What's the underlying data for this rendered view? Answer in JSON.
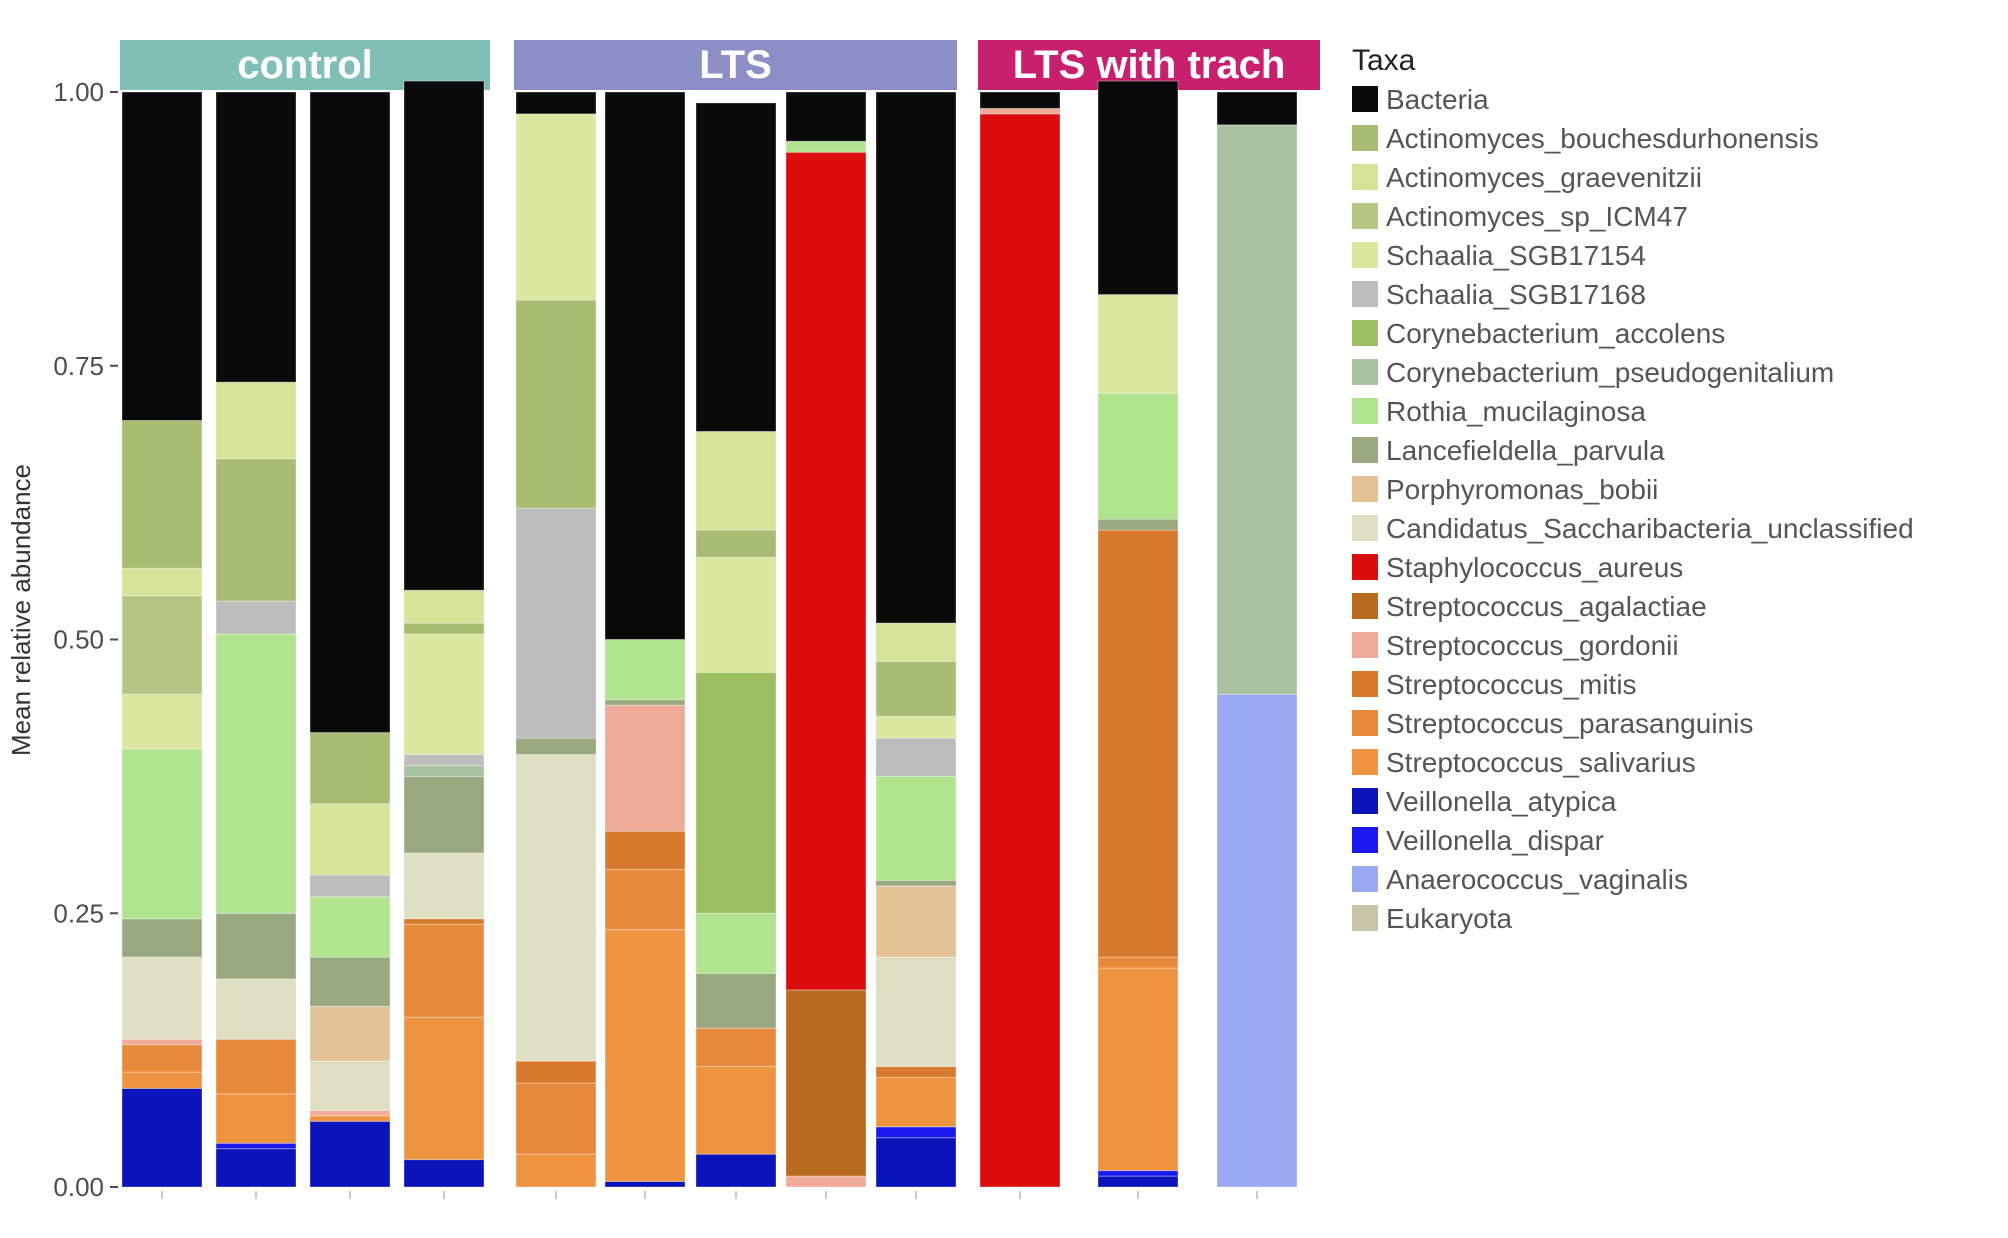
{
  "chart_data": {
    "type": "bar",
    "stacked": true,
    "ylabel": "Mean relative abundance",
    "xlabel": "",
    "ylim": [
      0,
      1
    ],
    "y_ticks": [
      "0.00",
      "0.25",
      "0.50",
      "0.75",
      "1.00"
    ],
    "legend": {
      "title": "Taxa",
      "position": "right"
    },
    "colors": {
      "Bacteria": "#0a0a0a",
      "Actinomyces_bouchesdurhonensis": "#a8bc74",
      "Actinomyces_graevenitzii": "#d6e49a",
      "Actinomyces_sp_ICM47": "#b5c684",
      "Schaalia_SGB17154": "#dbe69e",
      "Schaalia_SGB17168": "#bdbdbd",
      "Corynebacterium_accolens": "#9cbf62",
      "Corynebacterium_pseudogenitalium": "#a9c29f",
      "Rothia_mucilaginosa": "#b0e48e",
      "Lancefieldella_parvula": "#9aa880",
      "Porphyromonas_bobii": "#e3c396",
      "Candidatus_Saccharibacteria_unclassified": "#dfe0c3",
      "Staphylococcus_aureus": "#dc0d0d",
      "Streptococcus_agalactiae": "#b86a1e",
      "Streptococcus_gordonii": "#f0aa98",
      "Streptococcus_mitis": "#d87a2e",
      "Streptococcus_parasanguinis": "#e88a3c",
      "Streptococcus_salivarius": "#ee9440",
      "Veillonella_atypica": "#0a14b8",
      "Veillonella_dispar": "#1a1aee",
      "Anaerococcus_vaginalis": "#9aaaf2",
      "Eukaryota": "#c8c4a8"
    },
    "facets": [
      {
        "label": "control",
        "strip_color": "#7fbfb6",
        "bars": [
          {
            "segments": [
              [
                "Veillonella_atypica",
                0.09
              ],
              [
                "Streptococcus_salivarius",
                0.015
              ],
              [
                "Streptococcus_parasanguinis",
                0.025
              ],
              [
                "Streptococcus_gordonii",
                0.005
              ],
              [
                "Candidatus_Saccharibacteria_unclassified",
                0.075
              ],
              [
                "Lancefieldella_parvula",
                0.035
              ],
              [
                "Rothia_mucilaginosa",
                0.155
              ],
              [
                "Schaalia_SGB17154",
                0.05
              ],
              [
                "Actinomyces_sp_ICM47",
                0.09
              ],
              [
                "Actinomyces_graevenitzii",
                0.025
              ],
              [
                "Actinomyces_bouchesdurhonensis",
                0.135
              ],
              [
                "Bacteria",
                0.3
              ]
            ]
          },
          {
            "segments": [
              [
                "Veillonella_atypica",
                0.035
              ],
              [
                "Veillonella_dispar",
                0.005
              ],
              [
                "Streptococcus_salivarius",
                0.045
              ],
              [
                "Streptococcus_parasanguinis",
                0.05
              ],
              [
                "Candidatus_Saccharibacteria_unclassified",
                0.055
              ],
              [
                "Lancefieldella_parvula",
                0.06
              ],
              [
                "Rothia_mucilaginosa",
                0.255
              ],
              [
                "Schaalia_SGB17168",
                0.03
              ],
              [
                "Actinomyces_bouchesdurhonensis",
                0.13
              ],
              [
                "Actinomyces_graevenitzii",
                0.07
              ],
              [
                "Bacteria",
                0.265
              ]
            ]
          },
          {
            "segments": [
              [
                "Veillonella_atypica",
                0.06
              ],
              [
                "Streptococcus_salivarius",
                0.005
              ],
              [
                "Streptococcus_gordonii",
                0.005
              ],
              [
                "Candidatus_Saccharibacteria_unclassified",
                0.045
              ],
              [
                "Porphyromonas_bobii",
                0.05
              ],
              [
                "Lancefieldella_parvula",
                0.045
              ],
              [
                "Rothia_mucilaginosa",
                0.055
              ],
              [
                "Schaalia_SGB17168",
                0.02
              ],
              [
                "Actinomyces_graevenitzii",
                0.065
              ],
              [
                "Actinomyces_bouchesdurhonensis",
                0.065
              ],
              [
                "Bacteria",
                0.585
              ]
            ]
          },
          {
            "segments": [
              [
                "Veillonella_atypica",
                0.025
              ],
              [
                "Streptococcus_salivarius",
                0.13
              ],
              [
                "Streptococcus_parasanguinis",
                0.085
              ],
              [
                "Streptococcus_mitis",
                0.005
              ],
              [
                "Candidatus_Saccharibacteria_unclassified",
                0.06
              ],
              [
                "Lancefieldella_parvula",
                0.07
              ],
              [
                "Corynebacterium_pseudogenitalium",
                0.01
              ],
              [
                "Schaalia_SGB17168",
                0.01
              ],
              [
                "Schaalia_SGB17154",
                0.11
              ],
              [
                "Actinomyces_bouchesdurhonensis",
                0.01
              ],
              [
                "Actinomyces_graevenitzii",
                0.03
              ],
              [
                "Bacteria",
                0.465
              ]
            ]
          }
        ]
      },
      {
        "label": "LTS",
        "strip_color": "#8b8fc6",
        "bars": [
          {
            "segments": [
              [
                "Streptococcus_salivarius",
                0.03
              ],
              [
                "Streptococcus_parasanguinis",
                0.065
              ],
              [
                "Streptococcus_mitis",
                0.02
              ],
              [
                "Candidatus_Saccharibacteria_unclassified",
                0.28
              ],
              [
                "Lancefieldella_parvula",
                0.015
              ],
              [
                "Schaalia_SGB17168",
                0.21
              ],
              [
                "Actinomyces_bouchesdurhonensis",
                0.19
              ],
              [
                "Schaalia_SGB17154",
                0.17
              ],
              [
                "Bacteria",
                0.02
              ]
            ]
          },
          {
            "segments": [
              [
                "Veillonella_atypica",
                0.005
              ],
              [
                "Streptococcus_salivarius",
                0.23
              ],
              [
                "Streptococcus_parasanguinis",
                0.055
              ],
              [
                "Streptococcus_mitis",
                0.035
              ],
              [
                "Streptococcus_gordonii",
                0.115
              ],
              [
                "Lancefieldella_parvula",
                0.005
              ],
              [
                "Rothia_mucilaginosa",
                0.055
              ],
              [
                "Bacteria",
                0.5
              ]
            ]
          },
          {
            "segments": [
              [
                "Veillonella_atypica",
                0.03
              ],
              [
                "Streptococcus_salivarius",
                0.08
              ],
              [
                "Streptococcus_parasanguinis",
                0.035
              ],
              [
                "Lancefieldella_parvula",
                0.05
              ],
              [
                "Rothia_mucilaginosa",
                0.055
              ],
              [
                "Corynebacterium_accolens",
                0.22
              ],
              [
                "Schaalia_SGB17154",
                0.105
              ],
              [
                "Actinomyces_bouchesdurhonensis",
                0.025
              ],
              [
                "Actinomyces_graevenitzii",
                0.09
              ],
              [
                "Bacteria",
                0.3
              ]
            ]
          },
          {
            "segments": [
              [
                "Streptococcus_gordonii",
                0.01
              ],
              [
                "Streptococcus_agalactiae",
                0.17
              ],
              [
                "Staphylococcus_aureus",
                0.765
              ],
              [
                "Rothia_mucilaginosa",
                0.01
              ],
              [
                "Bacteria",
                0.045
              ]
            ]
          },
          {
            "segments": [
              [
                "Veillonella_atypica",
                0.045
              ],
              [
                "Veillonella_dispar",
                0.01
              ],
              [
                "Streptococcus_salivarius",
                0.045
              ],
              [
                "Streptococcus_mitis",
                0.01
              ],
              [
                "Candidatus_Saccharibacteria_unclassified",
                0.1
              ],
              [
                "Porphyromonas_bobii",
                0.065
              ],
              [
                "Lancefieldella_parvula",
                0.005
              ],
              [
                "Rothia_mucilaginosa",
                0.095
              ],
              [
                "Schaalia_SGB17168",
                0.035
              ],
              [
                "Schaalia_SGB17154",
                0.02
              ],
              [
                "Actinomyces_bouchesdurhonensis",
                0.05
              ],
              [
                "Actinomyces_graevenitzii",
                0.035
              ],
              [
                "Bacteria",
                0.485
              ]
            ]
          }
        ]
      },
      {
        "label": "LTS with trach",
        "strip_color": "#c8206e",
        "bars": [
          {
            "segments": [
              [
                "Staphylococcus_aureus",
                0.98
              ],
              [
                "Streptococcus_gordonii",
                0.005
              ],
              [
                "Bacteria",
                0.015
              ]
            ]
          },
          {
            "segments": [
              [
                "Veillonella_atypica",
                0.01
              ],
              [
                "Veillonella_dispar",
                0.005
              ],
              [
                "Streptococcus_salivarius",
                0.185
              ],
              [
                "Streptococcus_parasanguinis",
                0.01
              ],
              [
                "Streptococcus_mitis",
                0.39
              ],
              [
                "Lancefieldella_parvula",
                0.01
              ],
              [
                "Rothia_mucilaginosa",
                0.115
              ],
              [
                "Schaalia_SGB17154",
                0.09
              ],
              [
                "Bacteria",
                0.195
              ]
            ]
          },
          {
            "segments": [
              [
                "Anaerococcus_vaginalis",
                0.45
              ],
              [
                "Corynebacterium_pseudogenitalium",
                0.52
              ],
              [
                "Bacteria",
                0.03
              ]
            ]
          }
        ]
      }
    ]
  }
}
